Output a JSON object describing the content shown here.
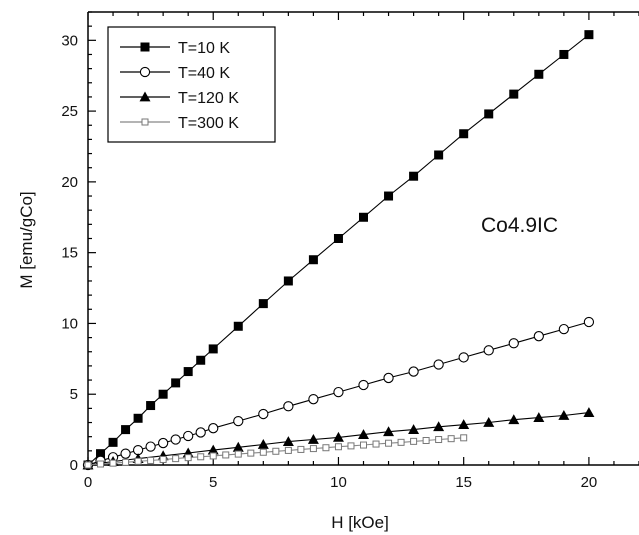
{
  "chart_data": {
    "type": "line",
    "xlabel": "H [kOe]",
    "ylabel": "M [emu/gCo]",
    "xlim": [
      0,
      22
    ],
    "ylim": [
      0,
      32
    ],
    "xticks": [
      "0",
      "5",
      "10",
      "15",
      "20"
    ],
    "yticks": [
      "0",
      "5",
      "10",
      "15",
      "20",
      "25",
      "30"
    ],
    "grid": false,
    "legend_position": "top-left",
    "annotation": "Co4.9IC",
    "series": [
      {
        "name": "T=10 K",
        "marker": "filled-square",
        "x": [
          0,
          0.5,
          1,
          1.5,
          2,
          2.5,
          3,
          3.5,
          4,
          4.5,
          5,
          6,
          7,
          8,
          9,
          10,
          11,
          12,
          13,
          14,
          15,
          16,
          17,
          18,
          19,
          20
        ],
        "y": [
          0,
          0.8,
          1.6,
          2.5,
          3.3,
          4.2,
          5.0,
          5.8,
          6.6,
          7.4,
          8.2,
          9.8,
          11.4,
          13.0,
          14.5,
          16.0,
          17.5,
          19.0,
          20.4,
          21.9,
          23.4,
          24.8,
          26.2,
          27.6,
          29.0,
          30.4
        ]
      },
      {
        "name": "T=40 K",
        "marker": "open-circle",
        "x": [
          0,
          0.5,
          1,
          1.5,
          2,
          2.5,
          3,
          3.5,
          4,
          4.5,
          5,
          6,
          7,
          8,
          9,
          10,
          11,
          12,
          13,
          14,
          15,
          16,
          17,
          18,
          19,
          20
        ],
        "y": [
          0,
          0.3,
          0.55,
          0.8,
          1.05,
          1.3,
          1.55,
          1.8,
          2.05,
          2.3,
          2.6,
          3.1,
          3.6,
          4.15,
          4.65,
          5.15,
          5.65,
          6.15,
          6.6,
          7.1,
          7.6,
          8.1,
          8.6,
          9.1,
          9.6,
          10.1
        ]
      },
      {
        "name": "T=120 K",
        "marker": "filled-triangle",
        "x": [
          0,
          1,
          2,
          3,
          4,
          5,
          6,
          7,
          8,
          9,
          10,
          11,
          12,
          13,
          14,
          15,
          16,
          17,
          18,
          19,
          20
        ],
        "y": [
          0,
          0.25,
          0.45,
          0.65,
          0.85,
          1.05,
          1.25,
          1.45,
          1.65,
          1.8,
          1.95,
          2.15,
          2.35,
          2.5,
          2.7,
          2.85,
          3.0,
          3.2,
          3.35,
          3.5,
          3.7
        ]
      },
      {
        "name": "T=300 K",
        "marker": "open-square-small",
        "x": [
          0,
          0.5,
          1,
          1.5,
          2,
          2.5,
          3,
          3.5,
          4,
          4.5,
          5,
          5.5,
          6,
          6.5,
          7,
          7.5,
          8,
          8.5,
          9,
          9.5,
          10,
          10.5,
          11,
          11.5,
          12,
          12.5,
          13,
          13.5,
          14,
          14.5,
          15
        ],
        "y": [
          0,
          0.07,
          0.13,
          0.19,
          0.26,
          0.32,
          0.39,
          0.45,
          0.52,
          0.58,
          0.64,
          0.71,
          0.77,
          0.84,
          0.9,
          0.97,
          1.03,
          1.1,
          1.16,
          1.22,
          1.29,
          1.35,
          1.41,
          1.48,
          1.54,
          1.6,
          1.67,
          1.73,
          1.8,
          1.86,
          1.92
        ]
      }
    ]
  }
}
